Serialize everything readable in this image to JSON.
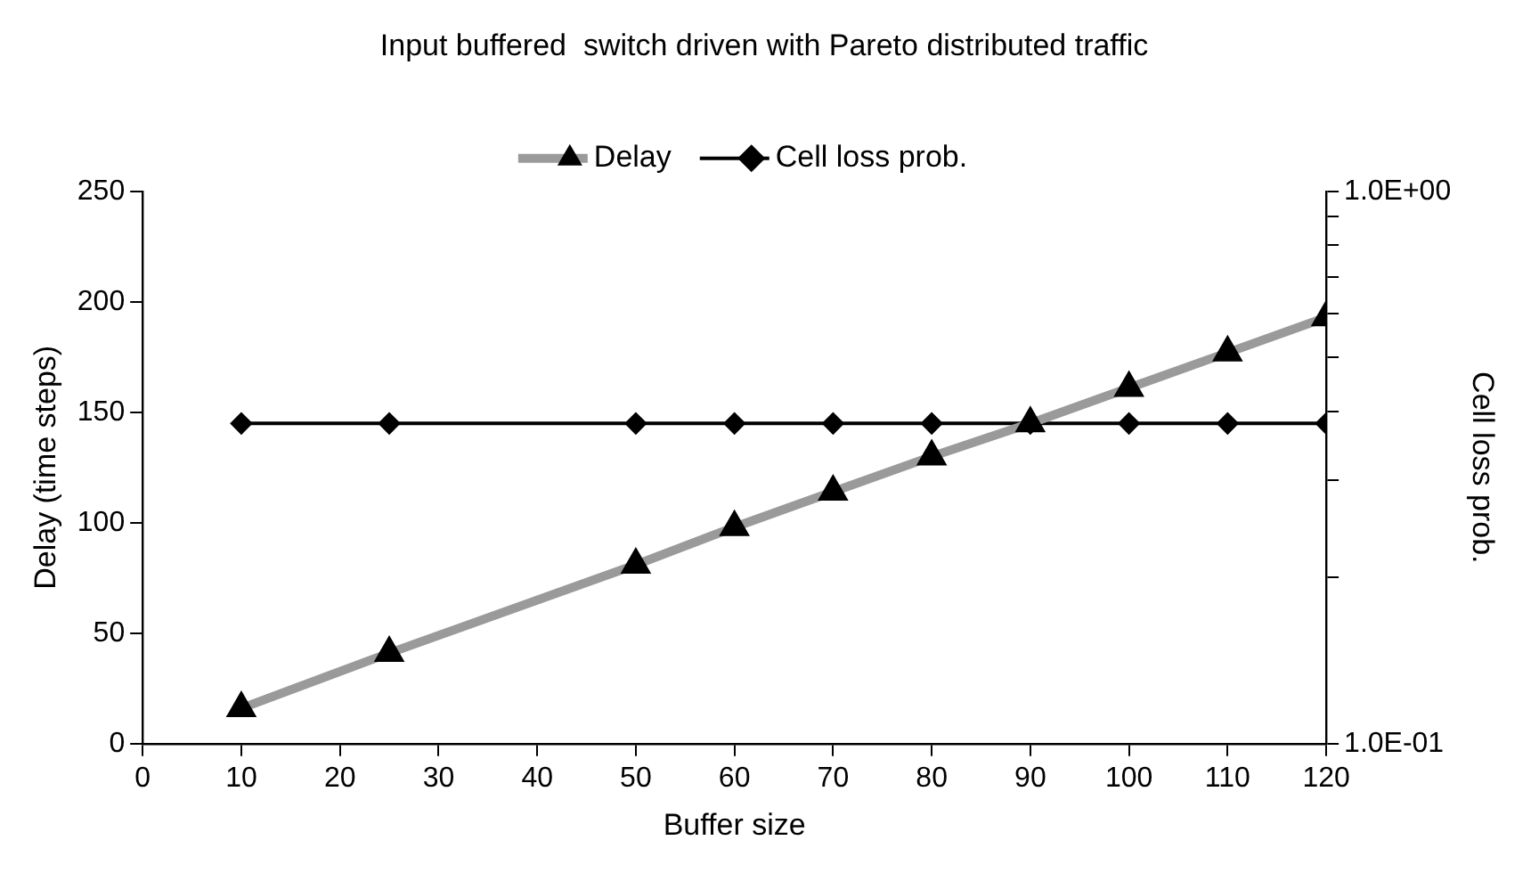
{
  "chart_data": {
    "type": "line",
    "title": "Input buffered  switch driven with Pareto distributed traffic",
    "xlabel": "Buffer size",
    "ylabel": "Delay (time steps)",
    "y2label": "Cell loss prob.",
    "x": [
      10,
      25,
      50,
      60,
      70,
      80,
      90,
      100,
      110,
      120
    ],
    "series": [
      {
        "name": "Delay",
        "color": "#9a9a9a",
        "marker": "triangle",
        "values": [
          16,
          41,
          81,
          98,
          114,
          130,
          145,
          161,
          177,
          193
        ]
      },
      {
        "name": "Cell loss prob.",
        "color": "#000000",
        "marker": "diamond",
        "axis": "y2",
        "values": [
          0.38,
          0.38,
          0.38,
          0.38,
          0.38,
          0.38,
          0.38,
          0.38,
          0.38,
          0.38
        ]
      }
    ],
    "xlim": [
      0,
      120
    ],
    "xticks": [
      0,
      10,
      20,
      30,
      40,
      50,
      60,
      70,
      80,
      90,
      100,
      110,
      120
    ],
    "ylim": [
      0,
      250
    ],
    "yticks": [
      0,
      50,
      100,
      150,
      200,
      250
    ],
    "y2lim": [
      0.1,
      1
    ],
    "y2ticks": [
      {
        "value": 0.1,
        "label": "1.0E-01"
      },
      {
        "value": 0.2,
        "label": null
      },
      {
        "value": 0.3,
        "label": null
      },
      {
        "value": 0.4,
        "label": null
      },
      {
        "value": 0.5,
        "label": null
      },
      {
        "value": 0.6,
        "label": null
      },
      {
        "value": 0.7,
        "label": null
      },
      {
        "value": 0.8,
        "label": null
      },
      {
        "value": 0.9,
        "label": null
      },
      {
        "value": 1,
        "label": "1.0E+00"
      }
    ],
    "log": "y2",
    "grid": false,
    "legend": "top",
    "line_style": "solid"
  }
}
